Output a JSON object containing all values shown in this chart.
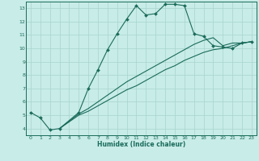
{
  "xlabel": "Humidex (Indice chaleur)",
  "bg_color": "#c8ece8",
  "grid_color": "#a8d4ce",
  "line_color": "#1a6b5a",
  "xlim": [
    -0.5,
    23.5
  ],
  "ylim": [
    3.5,
    13.5
  ],
  "xticks": [
    0,
    1,
    2,
    3,
    4,
    5,
    6,
    7,
    8,
    9,
    10,
    11,
    12,
    13,
    14,
    15,
    16,
    17,
    18,
    19,
    20,
    21,
    22,
    23
  ],
  "yticks": [
    4,
    5,
    6,
    7,
    8,
    9,
    10,
    11,
    12,
    13
  ],
  "line1_x": [
    0,
    1,
    2,
    3,
    5,
    6,
    7,
    8,
    9,
    10,
    11,
    12,
    13,
    14,
    15,
    16,
    17,
    18,
    19,
    20,
    21,
    22,
    23
  ],
  "line1_y": [
    5.2,
    4.8,
    3.9,
    4.0,
    5.2,
    7.0,
    8.4,
    9.9,
    11.1,
    12.2,
    13.2,
    12.5,
    12.6,
    13.3,
    13.3,
    13.2,
    11.1,
    10.9,
    10.2,
    10.1,
    10.0,
    10.4,
    10.5
  ],
  "line2_x": [
    3,
    5,
    6,
    7,
    8,
    9,
    10,
    11,
    12,
    13,
    14,
    15,
    16,
    17,
    18,
    19,
    20,
    21,
    22,
    23
  ],
  "line2_y": [
    4.0,
    5.1,
    5.5,
    6.0,
    6.5,
    7.0,
    7.5,
    7.9,
    8.3,
    8.7,
    9.1,
    9.5,
    9.9,
    10.3,
    10.6,
    10.8,
    10.2,
    10.4,
    10.4,
    10.5
  ],
  "line3_x": [
    3,
    5,
    6,
    7,
    8,
    9,
    10,
    11,
    12,
    13,
    14,
    15,
    16,
    17,
    18,
    19,
    20,
    21,
    22,
    23
  ],
  "line3_y": [
    4.0,
    5.0,
    5.3,
    5.7,
    6.1,
    6.5,
    6.9,
    7.2,
    7.6,
    8.0,
    8.4,
    8.7,
    9.1,
    9.4,
    9.7,
    9.9,
    10.0,
    10.2,
    10.4,
    10.5
  ]
}
